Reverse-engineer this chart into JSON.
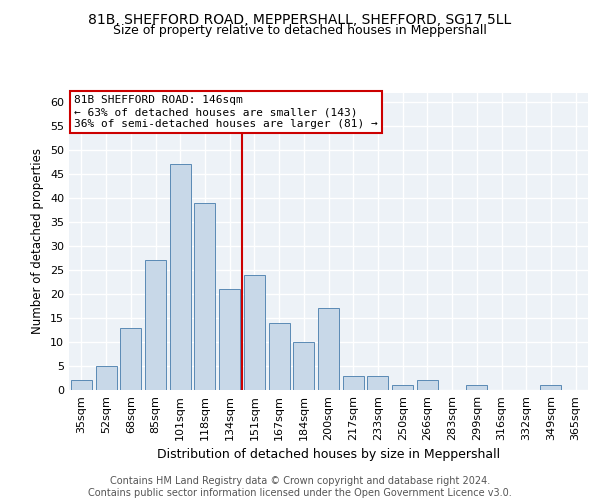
{
  "title1": "81B, SHEFFORD ROAD, MEPPERSHALL, SHEFFORD, SG17 5LL",
  "title2": "Size of property relative to detached houses in Meppershall",
  "xlabel": "Distribution of detached houses by size in Meppershall",
  "ylabel": "Number of detached properties",
  "categories": [
    "35sqm",
    "52sqm",
    "68sqm",
    "85sqm",
    "101sqm",
    "118sqm",
    "134sqm",
    "151sqm",
    "167sqm",
    "184sqm",
    "200sqm",
    "217sqm",
    "233sqm",
    "250sqm",
    "266sqm",
    "283sqm",
    "299sqm",
    "316sqm",
    "332sqm",
    "349sqm",
    "365sqm"
  ],
  "values": [
    2,
    5,
    13,
    27,
    47,
    39,
    21,
    24,
    14,
    10,
    17,
    3,
    3,
    1,
    2,
    0,
    1,
    0,
    0,
    1,
    0
  ],
  "bar_color": "#c8d8e8",
  "bar_edge_color": "#5a8ab5",
  "vline_color": "#cc0000",
  "annotation_text": "81B SHEFFORD ROAD: 146sqm\n← 63% of detached houses are smaller (143)\n36% of semi-detached houses are larger (81) →",
  "annotation_box_color": "#ffffff",
  "annotation_box_edge": "#cc0000",
  "ylim": [
    0,
    62
  ],
  "yticks": [
    0,
    5,
    10,
    15,
    20,
    25,
    30,
    35,
    40,
    45,
    50,
    55,
    60
  ],
  "footer_text": "Contains HM Land Registry data © Crown copyright and database right 2024.\nContains public sector information licensed under the Open Government Licence v3.0.",
  "bg_color": "#edf2f7",
  "grid_color": "#ffffff",
  "title1_fontsize": 10,
  "title2_fontsize": 9,
  "xlabel_fontsize": 9,
  "ylabel_fontsize": 8.5,
  "tick_fontsize": 8,
  "footer_fontsize": 7,
  "annot_fontsize": 8
}
